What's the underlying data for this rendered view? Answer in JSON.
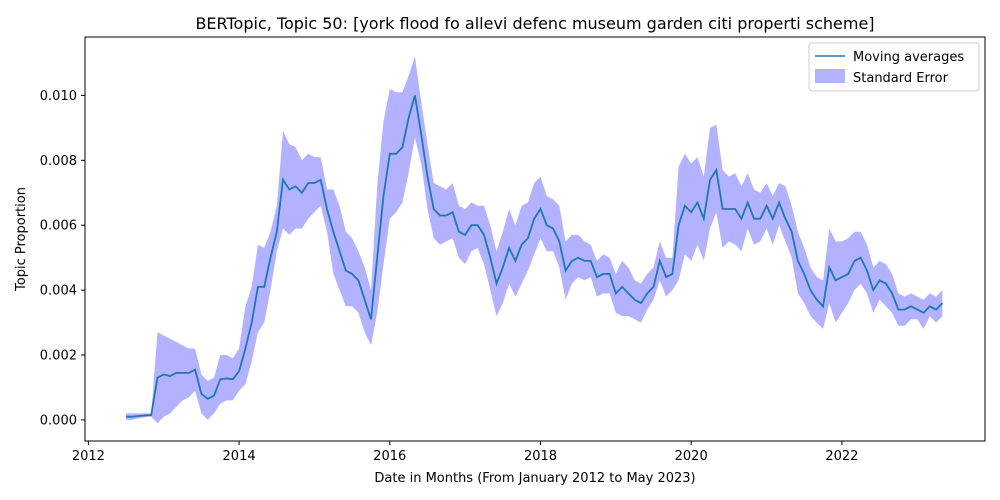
{
  "chart_data": {
    "type": "line",
    "title": "BERTopic, Topic 50: [york flood fo allevi defenc museum garden citi properti scheme]",
    "xlabel": "Date in Months (From January 2012 to May 2023)",
    "ylabel": "Topic Proportion",
    "xlim": [
      "2011-12-15",
      "2023-11-25"
    ],
    "ylim": [
      -0.00065,
      0.0118
    ],
    "x_ticks": [
      "2012",
      "2014",
      "2016",
      "2018",
      "2020",
      "2022"
    ],
    "y_ticks": [
      "0.000",
      "0.002",
      "0.004",
      "0.006",
      "0.008",
      "0.010"
    ],
    "grid": false,
    "legend_position": "top-right",
    "series": [
      {
        "name": "Moving averages",
        "band_name": "Standard Error",
        "color": "#1f77b4",
        "band_color": "#0000ff",
        "x": [
          "2012-07",
          "2012-08",
          "2012-09",
          "2012-10",
          "2012-11",
          "2012-12",
          "2013-01",
          "2013-02",
          "2013-03",
          "2013-04",
          "2013-05",
          "2013-06",
          "2013-07",
          "2013-08",
          "2013-09",
          "2013-10",
          "2013-11",
          "2013-12",
          "2014-01",
          "2014-02",
          "2014-03",
          "2014-04",
          "2014-05",
          "2014-06",
          "2014-07",
          "2014-08",
          "2014-09",
          "2014-10",
          "2014-11",
          "2014-12",
          "2015-01",
          "2015-02",
          "2015-03",
          "2015-04",
          "2015-05",
          "2015-06",
          "2015-07",
          "2015-08",
          "2015-09",
          "2015-10",
          "2015-11",
          "2015-12",
          "2016-01",
          "2016-02",
          "2016-03",
          "2016-04",
          "2016-05",
          "2016-06",
          "2016-07",
          "2016-08",
          "2016-09",
          "2016-10",
          "2016-11",
          "2016-12",
          "2017-01",
          "2017-02",
          "2017-03",
          "2017-04",
          "2017-05",
          "2017-06",
          "2017-07",
          "2017-08",
          "2017-09",
          "2017-10",
          "2017-11",
          "2017-12",
          "2018-01",
          "2018-02",
          "2018-03",
          "2018-04",
          "2018-05",
          "2018-06",
          "2018-07",
          "2018-08",
          "2018-09",
          "2018-10",
          "2018-11",
          "2018-12",
          "2019-01",
          "2019-02",
          "2019-03",
          "2019-04",
          "2019-05",
          "2019-06",
          "2019-07",
          "2019-08",
          "2019-09",
          "2019-10",
          "2019-11",
          "2019-12",
          "2020-01",
          "2020-02",
          "2020-03",
          "2020-04",
          "2020-05",
          "2020-06",
          "2020-07",
          "2020-08",
          "2020-09",
          "2020-10",
          "2020-11",
          "2020-12",
          "2021-01",
          "2021-02",
          "2021-03",
          "2021-04",
          "2021-05",
          "2021-06",
          "2021-07",
          "2021-08",
          "2021-09",
          "2021-10",
          "2021-11",
          "2021-12",
          "2022-01",
          "2022-02",
          "2022-03",
          "2022-04",
          "2022-05",
          "2022-06",
          "2022-07",
          "2022-08",
          "2022-09",
          "2022-10",
          "2022-11",
          "2022-12",
          "2023-01",
          "2023-02",
          "2023-03",
          "2023-04",
          "2023-05"
        ],
        "values": [
          0.0001,
          0.0001,
          0.00012,
          0.00014,
          0.00015,
          0.0013,
          0.0014,
          0.00135,
          0.00145,
          0.00145,
          0.00145,
          0.00155,
          0.0008,
          0.00065,
          0.00075,
          0.00125,
          0.00128,
          0.00125,
          0.0015,
          0.0022,
          0.003,
          0.0041,
          0.0041,
          0.005,
          0.0058,
          0.0074,
          0.0071,
          0.0072,
          0.007,
          0.0073,
          0.0073,
          0.0074,
          0.0065,
          0.0058,
          0.0052,
          0.0046,
          0.0045,
          0.0043,
          0.0037,
          0.0031,
          0.005,
          0.0069,
          0.0082,
          0.0082,
          0.0084,
          0.0093,
          0.01,
          0.0088,
          0.0075,
          0.0065,
          0.0063,
          0.0063,
          0.0064,
          0.0058,
          0.0057,
          0.006,
          0.006,
          0.0057,
          0.005,
          0.0042,
          0.0047,
          0.0053,
          0.0049,
          0.0054,
          0.0056,
          0.0062,
          0.0065,
          0.006,
          0.0059,
          0.0055,
          0.0046,
          0.0049,
          0.005,
          0.0049,
          0.0049,
          0.0044,
          0.0045,
          0.0045,
          0.0039,
          0.0041,
          0.0039,
          0.0037,
          0.0036,
          0.0039,
          0.0041,
          0.0049,
          0.0044,
          0.0045,
          0.006,
          0.0066,
          0.0064,
          0.0067,
          0.0062,
          0.0074,
          0.0077,
          0.0065,
          0.0065,
          0.0065,
          0.0062,
          0.0067,
          0.0062,
          0.0062,
          0.0066,
          0.0062,
          0.0067,
          0.0062,
          0.0058,
          0.0049,
          0.0045,
          0.004,
          0.0037,
          0.0035,
          0.0047,
          0.0043,
          0.0044,
          0.0045,
          0.0049,
          0.005,
          0.0046,
          0.004,
          0.0043,
          0.0042,
          0.0039,
          0.0034,
          0.0034,
          0.0035,
          0.0034,
          0.0033,
          0.0035,
          0.0034,
          0.0036
        ],
        "lower": [
          0.0,
          0.0,
          5e-05,
          8e-05,
          0.0001,
          -0.0001,
          0.0001,
          0.0002,
          0.0004,
          0.0006,
          0.0007,
          0.0009,
          0.0002,
          0.0,
          0.0002,
          0.0005,
          0.0006,
          0.0006,
          0.0009,
          0.0011,
          0.0018,
          0.0027,
          0.003,
          0.004,
          0.0052,
          0.0059,
          0.0057,
          0.0059,
          0.0059,
          0.0062,
          0.0064,
          0.0066,
          0.0058,
          0.0045,
          0.004,
          0.0035,
          0.0035,
          0.0033,
          0.0027,
          0.0023,
          0.0033,
          0.0048,
          0.0062,
          0.0064,
          0.0067,
          0.0076,
          0.0087,
          0.0079,
          0.0065,
          0.0056,
          0.0054,
          0.0055,
          0.0056,
          0.005,
          0.0048,
          0.0052,
          0.0053,
          0.0048,
          0.004,
          0.0032,
          0.0036,
          0.0042,
          0.0038,
          0.0042,
          0.0046,
          0.0051,
          0.0056,
          0.0052,
          0.0052,
          0.0047,
          0.0037,
          0.0042,
          0.0044,
          0.0043,
          0.0044,
          0.0038,
          0.0039,
          0.0039,
          0.0033,
          0.0032,
          0.0032,
          0.0031,
          0.003,
          0.0034,
          0.0037,
          0.0043,
          0.0038,
          0.004,
          0.0043,
          0.0051,
          0.0049,
          0.0054,
          0.0049,
          0.0059,
          0.0064,
          0.0053,
          0.0055,
          0.0054,
          0.0052,
          0.0059,
          0.0054,
          0.0055,
          0.0059,
          0.0054,
          0.006,
          0.0055,
          0.005,
          0.0039,
          0.0036,
          0.0032,
          0.003,
          0.0028,
          0.0036,
          0.003,
          0.0033,
          0.0036,
          0.004,
          0.0042,
          0.0039,
          0.0033,
          0.0037,
          0.0035,
          0.0033,
          0.0029,
          0.0029,
          0.0031,
          0.0031,
          0.0028,
          0.0032,
          0.003,
          0.0032
        ],
        "upper": [
          0.0002,
          0.0002,
          0.0002,
          0.0002,
          0.0002,
          0.0027,
          0.0026,
          0.0025,
          0.0024,
          0.0023,
          0.0022,
          0.0022,
          0.0014,
          0.0012,
          0.0013,
          0.002,
          0.002,
          0.0019,
          0.0022,
          0.0035,
          0.0041,
          0.0054,
          0.0053,
          0.0058,
          0.0066,
          0.0089,
          0.0085,
          0.0084,
          0.008,
          0.0082,
          0.0081,
          0.0081,
          0.0071,
          0.0071,
          0.0066,
          0.0058,
          0.0056,
          0.0052,
          0.0047,
          0.004,
          0.0072,
          0.0092,
          0.0102,
          0.0101,
          0.0101,
          0.0106,
          0.0112,
          0.0098,
          0.0085,
          0.0073,
          0.0072,
          0.0071,
          0.0073,
          0.0066,
          0.0065,
          0.0067,
          0.0066,
          0.0066,
          0.006,
          0.0052,
          0.0058,
          0.0065,
          0.006,
          0.0066,
          0.0067,
          0.0073,
          0.0075,
          0.0069,
          0.0068,
          0.0066,
          0.0055,
          0.0057,
          0.0057,
          0.0055,
          0.0054,
          0.0049,
          0.0051,
          0.005,
          0.0045,
          0.0049,
          0.0047,
          0.0043,
          0.0042,
          0.0045,
          0.0047,
          0.0055,
          0.005,
          0.005,
          0.0078,
          0.0082,
          0.0079,
          0.0081,
          0.0075,
          0.009,
          0.0091,
          0.0077,
          0.0075,
          0.0076,
          0.0072,
          0.0076,
          0.0071,
          0.007,
          0.0073,
          0.0069,
          0.0073,
          0.0072,
          0.0066,
          0.0058,
          0.0053,
          0.0047,
          0.0044,
          0.0043,
          0.0059,
          0.0055,
          0.0055,
          0.0056,
          0.0058,
          0.0058,
          0.0054,
          0.0047,
          0.0049,
          0.0048,
          0.0045,
          0.0039,
          0.0038,
          0.0039,
          0.0038,
          0.0037,
          0.0039,
          0.0038,
          0.004
        ]
      }
    ]
  }
}
